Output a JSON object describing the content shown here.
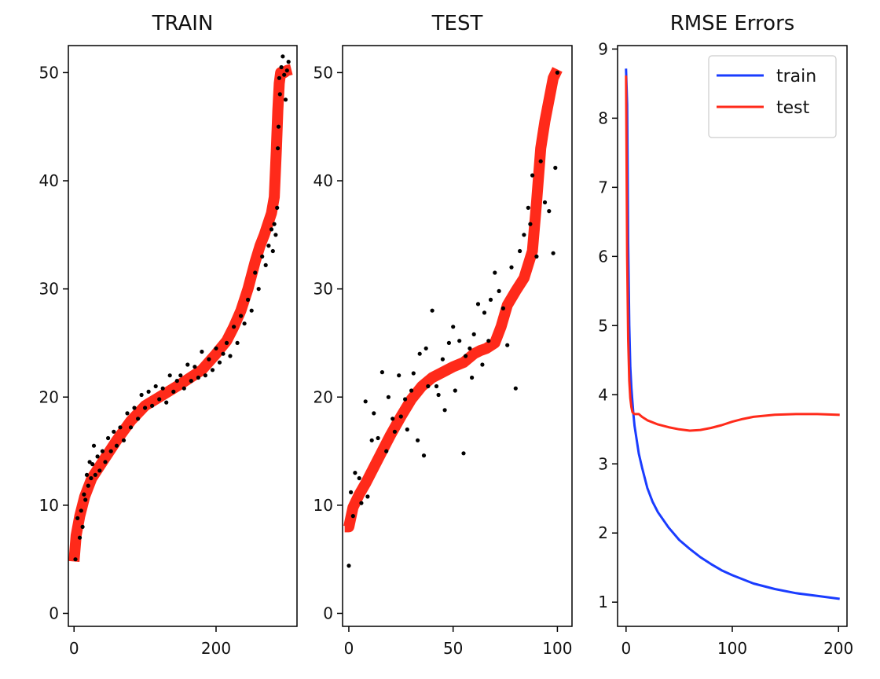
{
  "chart_data": [
    {
      "type": "scatter",
      "title": "TRAIN",
      "xlim": [
        -8,
        314
      ],
      "ylim": [
        -1.2,
        52.5
      ],
      "xticks": [
        0,
        200
      ],
      "yticks": [
        0,
        10,
        20,
        30,
        40,
        50
      ],
      "series": [
        {
          "role": "prediction",
          "style": "thick-line",
          "color": "#ff2a1a",
          "x": [
            0,
            3,
            8,
            15,
            25,
            40,
            60,
            80,
            100,
            120,
            150,
            180,
            200,
            215,
            225,
            235,
            245,
            255,
            262,
            268,
            273,
            278,
            282,
            285,
            287,
            289,
            291,
            293,
            296,
            300,
            306
          ],
          "y": [
            4.8,
            7.2,
            9.0,
            10.8,
            12.5,
            14.0,
            16.0,
            17.8,
            19.2,
            20.0,
            21.2,
            22.5,
            24.0,
            25.2,
            26.5,
            28.0,
            30.0,
            32.5,
            34.0,
            35.0,
            36.0,
            37.0,
            38.5,
            43.0,
            46.5,
            49.0,
            50.0,
            50.0,
            50.0,
            50.2,
            50.3
          ]
        },
        {
          "role": "target",
          "style": "points",
          "color": "#000000",
          "x": [
            2,
            5,
            8,
            10,
            12,
            14,
            16,
            18,
            20,
            22,
            24,
            26,
            28,
            30,
            33,
            36,
            40,
            44,
            48,
            52,
            56,
            60,
            65,
            70,
            75,
            80,
            85,
            90,
            95,
            100,
            105,
            110,
            115,
            120,
            125,
            130,
            135,
            140,
            145,
            150,
            155,
            160,
            165,
            170,
            175,
            180,
            185,
            190,
            195,
            200,
            205,
            210,
            215,
            220,
            225,
            230,
            235,
            240,
            245,
            250,
            255,
            260,
            265,
            270,
            274,
            278,
            280,
            282,
            284,
            286,
            287,
            288,
            289,
            290,
            292,
            294,
            296,
            298,
            300,
            302
          ],
          "y": [
            5.0,
            8.8,
            7.0,
            9.5,
            8.0,
            11.0,
            10.5,
            12.8,
            11.8,
            14.0,
            12.5,
            13.8,
            15.5,
            12.8,
            14.5,
            13.2,
            15.0,
            14.0,
            16.2,
            15.0,
            16.8,
            15.5,
            17.2,
            16.0,
            18.5,
            17.2,
            19.0,
            18.0,
            20.2,
            19.0,
            20.5,
            19.2,
            21.0,
            19.8,
            20.8,
            19.5,
            22.0,
            20.5,
            21.5,
            22.0,
            20.8,
            23.0,
            21.5,
            22.8,
            21.8,
            24.2,
            22.0,
            23.5,
            22.5,
            24.5,
            23.2,
            24.0,
            25.0,
            23.8,
            26.5,
            25.0,
            27.5,
            26.8,
            29.0,
            28.0,
            31.5,
            30.0,
            33.0,
            32.2,
            34.0,
            35.5,
            33.5,
            36.0,
            35.0,
            37.5,
            43.0,
            45.0,
            49.5,
            48.0,
            50.5,
            51.5,
            49.8,
            47.5,
            50.2,
            51.0
          ]
        }
      ]
    },
    {
      "type": "scatter",
      "title": "TEST",
      "xlim": [
        -3,
        107
      ],
      "ylim": [
        -1.2,
        52.5
      ],
      "xticks": [
        0,
        50,
        100
      ],
      "yticks": [
        0,
        10,
        20,
        30,
        40,
        50
      ],
      "series": [
        {
          "role": "prediction",
          "style": "thick-line",
          "color": "#ff2a1a",
          "x": [
            -2,
            0,
            2,
            5,
            8,
            12,
            16,
            20,
            25,
            30,
            35,
            40,
            45,
            50,
            55,
            60,
            63,
            66,
            70,
            73,
            76,
            80,
            84,
            88,
            90,
            92,
            94,
            96,
            98,
            100
          ],
          "y": [
            8.0,
            8.0,
            9.8,
            11.0,
            12.0,
            13.5,
            15.0,
            16.5,
            18.2,
            19.8,
            21.0,
            21.8,
            22.3,
            22.8,
            23.2,
            24.0,
            24.3,
            24.5,
            25.0,
            26.5,
            28.5,
            29.8,
            31.0,
            33.5,
            38.0,
            43.0,
            45.5,
            47.5,
            49.5,
            50.3
          ]
        },
        {
          "role": "target",
          "style": "points",
          "color": "#000000",
          "x": [
            0,
            1,
            2,
            3,
            5,
            6,
            8,
            9,
            11,
            12,
            14,
            16,
            18,
            19,
            21,
            22,
            24,
            25,
            27,
            28,
            30,
            31,
            33,
            34,
            36,
            37,
            38,
            40,
            42,
            43,
            45,
            46,
            48,
            50,
            51,
            53,
            55,
            56,
            58,
            59,
            60,
            62,
            64,
            65,
            67,
            68,
            70,
            72,
            74,
            76,
            78,
            80,
            82,
            84,
            86,
            87,
            88,
            90,
            92,
            94,
            96,
            98,
            99,
            100
          ],
          "y": [
            4.4,
            11.2,
            9.0,
            13.0,
            12.5,
            10.2,
            19.6,
            10.8,
            16.0,
            18.5,
            16.2,
            22.3,
            15.0,
            20.0,
            18.0,
            16.8,
            22.0,
            18.2,
            19.8,
            17.0,
            20.6,
            22.2,
            16.0,
            24.0,
            14.6,
            24.5,
            21.0,
            28.0,
            21.0,
            20.2,
            23.5,
            18.8,
            25.0,
            26.5,
            20.6,
            25.2,
            14.8,
            23.8,
            24.5,
            21.8,
            25.8,
            28.6,
            23.0,
            27.8,
            25.2,
            29.0,
            31.5,
            29.8,
            28.2,
            24.8,
            32.0,
            20.8,
            33.5,
            35.0,
            37.5,
            36.0,
            40.5,
            33.0,
            41.8,
            38.0,
            37.2,
            33.3,
            41.2,
            50.0
          ]
        }
      ]
    },
    {
      "type": "line",
      "title": "RMSE Errors",
      "xlim": [
        -8,
        208
      ],
      "ylim": [
        0.65,
        9.05
      ],
      "xticks": [
        0,
        100,
        200
      ],
      "yticks": [
        1,
        2,
        3,
        4,
        5,
        6,
        7,
        8,
        9
      ],
      "legend": "top-right",
      "series": [
        {
          "name": "train",
          "color": "#1a3cff",
          "x": [
            0,
            1,
            2,
            3,
            4,
            5,
            6,
            7,
            8,
            10,
            12,
            15,
            20,
            25,
            30,
            40,
            50,
            60,
            70,
            80,
            90,
            100,
            120,
            140,
            160,
            180,
            200
          ],
          "y": [
            8.7,
            8.2,
            6.2,
            5.0,
            4.4,
            4.1,
            3.9,
            3.7,
            3.55,
            3.35,
            3.15,
            2.95,
            2.65,
            2.45,
            2.3,
            2.08,
            1.9,
            1.77,
            1.65,
            1.55,
            1.46,
            1.39,
            1.27,
            1.19,
            1.13,
            1.09,
            1.05
          ]
        },
        {
          "name": "test",
          "color": "#ff2a1a",
          "x": [
            0,
            1,
            2,
            3,
            4,
            5,
            6,
            7,
            8,
            10,
            12,
            15,
            20,
            30,
            40,
            50,
            60,
            70,
            80,
            90,
            100,
            110,
            120,
            140,
            160,
            180,
            200
          ],
          "y": [
            8.6,
            6.0,
            4.8,
            4.2,
            3.95,
            3.82,
            3.75,
            3.73,
            3.72,
            3.72,
            3.72,
            3.68,
            3.63,
            3.57,
            3.53,
            3.5,
            3.48,
            3.49,
            3.52,
            3.56,
            3.61,
            3.65,
            3.68,
            3.71,
            3.72,
            3.72,
            3.71
          ]
        }
      ]
    }
  ]
}
